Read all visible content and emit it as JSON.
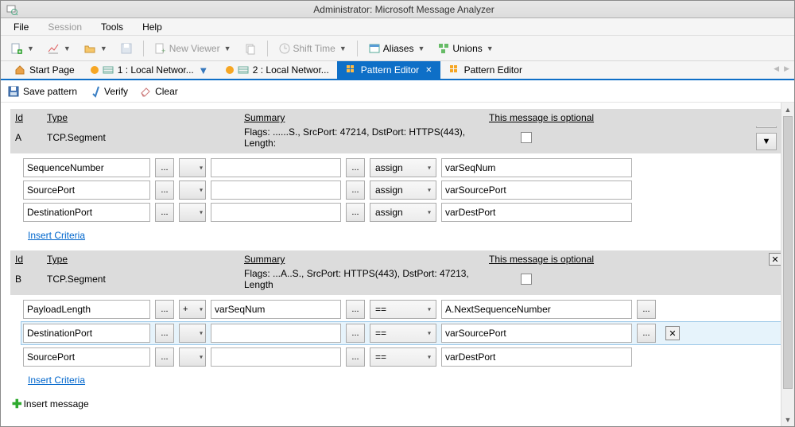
{
  "titlebar": {
    "title": "Administrator: Microsoft Message Analyzer"
  },
  "menubar": {
    "file": "File",
    "session": "Session",
    "tools": "Tools",
    "help": "Help"
  },
  "toolbar": {
    "newViewer": "New Viewer",
    "shiftTime": "Shift Time",
    "aliases": "Aliases",
    "unions": "Unions"
  },
  "tabs": {
    "startPage": "Start Page",
    "t1": "1 : Local Networ...",
    "t2": "2 : Local Networ...",
    "patternEditorActive": "Pattern Editor",
    "patternEditor": "Pattern Editor"
  },
  "actions": {
    "save": "Save pattern",
    "verify": "Verify",
    "clear": "Clear"
  },
  "headers": {
    "id": "Id",
    "type": "Type",
    "summary": "Summary",
    "optional": "This message is optional"
  },
  "msgA": {
    "id": "A",
    "type": "TCP.Segment",
    "summary": "Flags: ......S., SrcPort: 47214, DstPort: HTTPS(443), Length:",
    "criteria": [
      {
        "field": "SequenceNumber",
        "op": "",
        "left": "",
        "cmp": "assign",
        "right": "varSeqNum"
      },
      {
        "field": "SourcePort",
        "op": "",
        "left": "",
        "cmp": "assign",
        "right": "varSourcePort"
      },
      {
        "field": "DestinationPort",
        "op": "",
        "left": "",
        "cmp": "assign",
        "right": "varDestPort"
      }
    ]
  },
  "msgB": {
    "id": "B",
    "type": "TCP.Segment",
    "summary": "Flags: ...A..S., SrcPort: HTTPS(443), DstPort: 47213, Length",
    "criteria": [
      {
        "field": "PayloadLength",
        "op": "+",
        "left": "varSeqNum",
        "cmp": "==",
        "right": "A.NextSequenceNumber",
        "extra": true
      },
      {
        "field": "DestinationPort",
        "op": "",
        "left": "",
        "cmp": "==",
        "right": "varSourcePort",
        "extra": true,
        "close": true,
        "highlight": true
      },
      {
        "field": "SourcePort",
        "op": "",
        "left": "",
        "cmp": "==",
        "right": "varDestPort"
      }
    ]
  },
  "links": {
    "insertCriteria": "Insert Criteria",
    "insertMessage": "Insert message"
  },
  "dots": "..."
}
